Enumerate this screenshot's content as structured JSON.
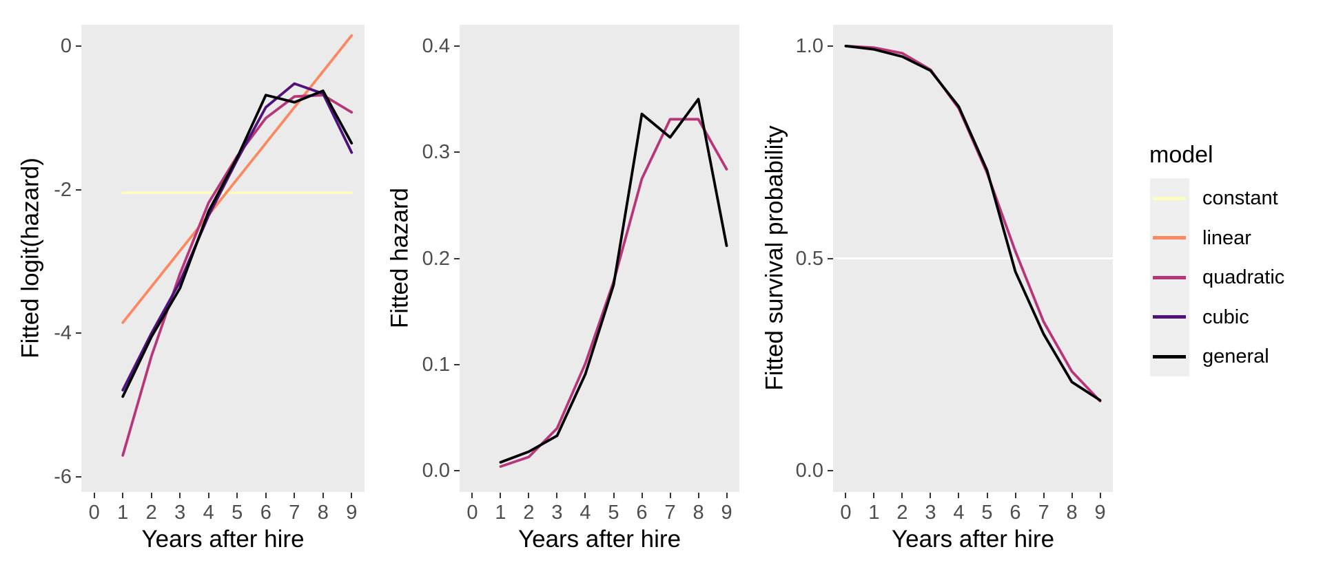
{
  "page": {
    "background": "#FFFFFF",
    "panel_background": "#EBEBEB",
    "tick_color": "#333333",
    "tick_label_color": "#4D4D4D"
  },
  "legend": {
    "title": "model",
    "items": [
      {
        "label": "constant",
        "color": "#FCFDBF"
      },
      {
        "label": "linear",
        "color": "#FB8861"
      },
      {
        "label": "quadratic",
        "color": "#B63679"
      },
      {
        "label": "cubic",
        "color": "#51127C"
      },
      {
        "label": "general",
        "color": "#000004"
      }
    ]
  },
  "chart_data": [
    {
      "type": "line",
      "title": "",
      "xlabel": "Years after hire",
      "ylabel": "Fitted logit(hazard)",
      "xlim": [
        -0.45,
        9.45
      ],
      "ylim": [
        -6.21,
        0.3
      ],
      "grid": false,
      "legend_position": "right",
      "x_tick_values": [
        0,
        1,
        2,
        3,
        4,
        5,
        6,
        7,
        8,
        9
      ],
      "x_tick_labels": [
        "0",
        "1",
        "2",
        "3",
        "4",
        "5",
        "6",
        "7",
        "8",
        "9"
      ],
      "y_tick_values": [
        0,
        -2,
        -4,
        -6
      ],
      "y_tick_labels": [
        "0",
        "-2",
        "-4",
        "-6"
      ],
      "ref_lines": [],
      "series": [
        {
          "name": "constant",
          "color": "#FCFDBF",
          "x": [
            1,
            9
          ],
          "y": [
            -2.04,
            -2.04
          ]
        },
        {
          "name": "linear",
          "color": "#FB8861",
          "x": [
            1,
            2,
            3,
            4,
            5,
            6,
            7,
            8,
            9
          ],
          "y": [
            -3.85,
            -3.35,
            -2.85,
            -2.35,
            -1.85,
            -1.35,
            -0.85,
            -0.35,
            0.15
          ]
        },
        {
          "name": "quadratic",
          "color": "#B63679",
          "x": [
            1,
            2,
            3,
            4,
            5,
            6,
            7,
            8,
            9
          ],
          "y": [
            -5.7,
            -4.32,
            -3.17,
            -2.18,
            -1.53,
            -1.0,
            -0.7,
            -0.68,
            -0.92
          ]
        },
        {
          "name": "cubic",
          "color": "#51127C",
          "x": [
            1,
            2,
            3,
            4,
            5,
            6,
            7,
            8,
            9
          ],
          "y": [
            -4.79,
            -4.0,
            -3.28,
            -2.36,
            -1.58,
            -0.85,
            -0.52,
            -0.66,
            -1.48
          ]
        },
        {
          "name": "general",
          "color": "#000004",
          "x": [
            1,
            2,
            3,
            4,
            5,
            6,
            7,
            8,
            9
          ],
          "y": [
            -4.88,
            -4.05,
            -3.37,
            -2.3,
            -1.55,
            -0.68,
            -0.78,
            -0.62,
            -1.35
          ]
        }
      ]
    },
    {
      "type": "line",
      "title": "",
      "xlabel": "Years after hire",
      "ylabel": "Fitted hazard",
      "xlim": [
        -0.45,
        9.45
      ],
      "ylim": [
        -0.02,
        0.42
      ],
      "grid": false,
      "x_tick_values": [
        0,
        1,
        2,
        3,
        4,
        5,
        6,
        7,
        8,
        9
      ],
      "x_tick_labels": [
        "0",
        "1",
        "2",
        "3",
        "4",
        "5",
        "6",
        "7",
        "8",
        "9"
      ],
      "y_tick_values": [
        0.0,
        0.1,
        0.2,
        0.3,
        0.4
      ],
      "y_tick_labels": [
        "0.0",
        "0.1",
        "0.2",
        "0.3",
        "0.4"
      ],
      "ref_lines": [],
      "series": [
        {
          "name": "quadratic",
          "color": "#B63679",
          "x": [
            1,
            2,
            3,
            4,
            5,
            6,
            7,
            8,
            9
          ],
          "y": [
            0.004,
            0.013,
            0.04,
            0.101,
            0.178,
            0.275,
            0.331,
            0.331,
            0.284
          ]
        },
        {
          "name": "general",
          "color": "#000004",
          "x": [
            1,
            2,
            3,
            4,
            5,
            6,
            7,
            8,
            9
          ],
          "y": [
            0.008,
            0.018,
            0.033,
            0.091,
            0.175,
            0.336,
            0.314,
            0.35,
            0.212
          ]
        }
      ]
    },
    {
      "type": "line",
      "title": "",
      "xlabel": "Years after hire",
      "ylabel": "Fitted survival probability",
      "xlim": [
        -0.45,
        9.45
      ],
      "ylim": [
        -0.05,
        1.05
      ],
      "grid": false,
      "x_tick_values": [
        0,
        1,
        2,
        3,
        4,
        5,
        6,
        7,
        8,
        9
      ],
      "x_tick_labels": [
        "0",
        "1",
        "2",
        "3",
        "4",
        "5",
        "6",
        "7",
        "8",
        "9"
      ],
      "y_tick_values": [
        0.0,
        0.5,
        1.0
      ],
      "y_tick_labels": [
        "0.0",
        "0.5",
        "1.0"
      ],
      "ref_lines": [
        {
          "y": 0.5,
          "color": "#FFFFFF"
        }
      ],
      "series": [
        {
          "name": "quadratic",
          "color": "#B63679",
          "x": [
            0,
            1,
            2,
            3,
            4,
            5,
            6,
            7,
            8,
            9
          ],
          "y": [
            1.0,
            0.996,
            0.983,
            0.944,
            0.853,
            0.701,
            0.517,
            0.351,
            0.234,
            0.164
          ]
        },
        {
          "name": "general",
          "color": "#000004",
          "x": [
            0,
            1,
            2,
            3,
            4,
            5,
            6,
            7,
            8,
            9
          ],
          "y": [
            1.0,
            0.992,
            0.975,
            0.942,
            0.857,
            0.707,
            0.469,
            0.322,
            0.209,
            0.166
          ]
        }
      ]
    }
  ]
}
